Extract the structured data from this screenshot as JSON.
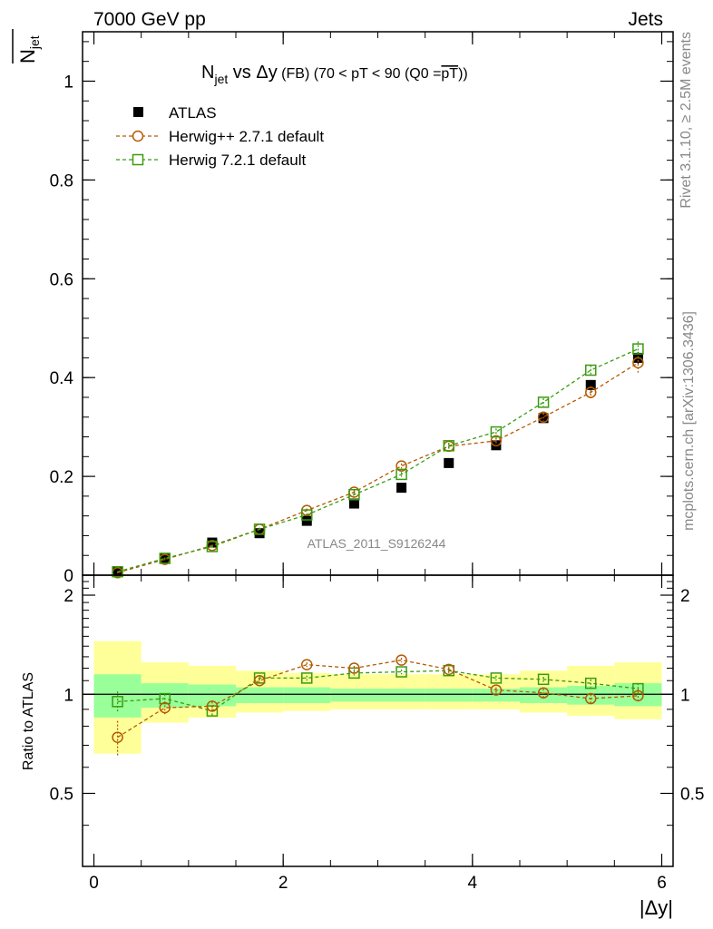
{
  "header": {
    "left": "7000 GeV pp",
    "right": "Jets"
  },
  "side_labels": {
    "rivet": "Rivet 3.1.10, ≥ 2.5M events",
    "mcplots": "mcplots.cern.ch [arXiv:1306.3436]"
  },
  "title": {
    "n": "N",
    "n_sub": "jet",
    "vs": " vs Δy",
    "fb": " (FB) (70 < pT <  90 (Q0 =",
    "pt": "pT",
    "close": "))"
  },
  "ylabel_top": {
    "n": "N",
    "sub": "jet"
  },
  "ylabel_bottom": "Ratio to ATLAS",
  "xlabel": "|Δy|",
  "watermark": "ATLAS_2011_S9126244",
  "legend": [
    {
      "label": "ATLAS",
      "color": "#000000",
      "marker": "filled-square"
    },
    {
      "label": "Herwig++ 2.7.1 default",
      "color": "#b35a00",
      "marker": "open-circle"
    },
    {
      "label": "Herwig 7.2.1 default",
      "color": "#3a9b10",
      "marker": "open-square"
    }
  ],
  "colors": {
    "band_outer": "#ffff99",
    "band_inner": "#99ff99",
    "herwigpp": "#b35a00",
    "herwig7": "#3a9b10",
    "data": "#000000"
  },
  "chart_data": {
    "type": "scatter",
    "x_edges": [
      0,
      0.5,
      1,
      1.5,
      2,
      2.5,
      3,
      3.5,
      4,
      4.5,
      5,
      5.5,
      6
    ],
    "x": [
      0.25,
      0.75,
      1.25,
      1.75,
      2.25,
      2.75,
      3.25,
      3.75,
      4.25,
      4.75,
      5.25,
      5.75
    ],
    "xlim": [
      -0.12,
      6.12
    ],
    "xticks": [
      0,
      2,
      4,
      6
    ],
    "main": {
      "ylim": [
        0,
        1.1
      ],
      "yticks": [
        0,
        0.2,
        0.4,
        0.6,
        0.8,
        1
      ],
      "ytick_labels": [
        "0",
        "0.2",
        "0.4",
        "0.6",
        "0.8",
        "1"
      ],
      "series": [
        {
          "name": "ATLAS",
          "values": [
            0.007,
            0.035,
            0.066,
            0.085,
            0.11,
            0.145,
            0.177,
            0.227,
            0.263,
            0.318,
            0.385,
            0.44
          ],
          "errors": [
            0.001,
            0.002,
            0.003,
            0.004,
            0.005,
            0.005,
            0.006,
            0.007,
            0.008,
            0.009,
            0.01,
            0.012
          ]
        },
        {
          "name": "Herwig++ 2.7.1 default",
          "values": [
            0.005,
            0.032,
            0.06,
            0.093,
            0.131,
            0.168,
            0.221,
            0.261,
            0.272,
            0.32,
            0.37,
            0.43
          ],
          "errors": [
            0.001,
            0.002,
            0.002,
            0.003,
            0.004,
            0.004,
            0.005,
            0.006,
            0.006,
            0.008,
            0.012,
            0.02
          ]
        },
        {
          "name": "Herwig 7.2.1 default",
          "values": [
            0.007,
            0.034,
            0.058,
            0.093,
            0.122,
            0.163,
            0.204,
            0.262,
            0.29,
            0.35,
            0.415,
            0.458
          ],
          "errors": [
            0.001,
            0.002,
            0.002,
            0.003,
            0.003,
            0.004,
            0.005,
            0.006,
            0.007,
            0.008,
            0.01,
            0.015
          ]
        }
      ]
    },
    "ratio": {
      "ylim": [
        0.3,
        2.3
      ],
      "yticks": [
        0.5,
        1,
        2
      ],
      "ytick_labels": [
        "0.5",
        "1",
        "2"
      ],
      "band_inner": [
        [
          0.85,
          1.15
        ],
        [
          0.91,
          1.08
        ],
        [
          0.92,
          1.07
        ],
        [
          0.94,
          1.05
        ],
        [
          0.94,
          1.05
        ],
        [
          0.95,
          1.04
        ],
        [
          0.95,
          1.04
        ],
        [
          0.95,
          1.04
        ],
        [
          0.95,
          1.04
        ],
        [
          0.94,
          1.05
        ],
        [
          0.93,
          1.06
        ],
        [
          0.92,
          1.08
        ]
      ],
      "band_outer": [
        [
          0.66,
          1.45
        ],
        [
          0.82,
          1.25
        ],
        [
          0.85,
          1.22
        ],
        [
          0.88,
          1.18
        ],
        [
          0.89,
          1.16
        ],
        [
          0.9,
          1.15
        ],
        [
          0.9,
          1.15
        ],
        [
          0.9,
          1.15
        ],
        [
          0.9,
          1.15
        ],
        [
          0.88,
          1.18
        ],
        [
          0.86,
          1.22
        ],
        [
          0.84,
          1.25
        ]
      ],
      "series": [
        {
          "name": "Herwig++ 2.7.1 default",
          "values": [
            0.74,
            0.91,
            0.92,
            1.1,
            1.23,
            1.2,
            1.27,
            1.19,
            1.03,
            1.01,
            0.97,
            0.99
          ],
          "errors": [
            0.09,
            0.04,
            0.03,
            0.02,
            0.02,
            0.02,
            0.02,
            0.02,
            0.02,
            0.03,
            0.03,
            0.05
          ]
        },
        {
          "name": "Herwig 7.2.1 default",
          "values": [
            0.95,
            0.97,
            0.89,
            1.12,
            1.12,
            1.16,
            1.17,
            1.18,
            1.12,
            1.11,
            1.08,
            1.04
          ],
          "errors": [
            0.07,
            0.03,
            0.03,
            0.02,
            0.02,
            0.02,
            0.02,
            0.02,
            0.02,
            0.02,
            0.03,
            0.04
          ]
        }
      ]
    }
  }
}
